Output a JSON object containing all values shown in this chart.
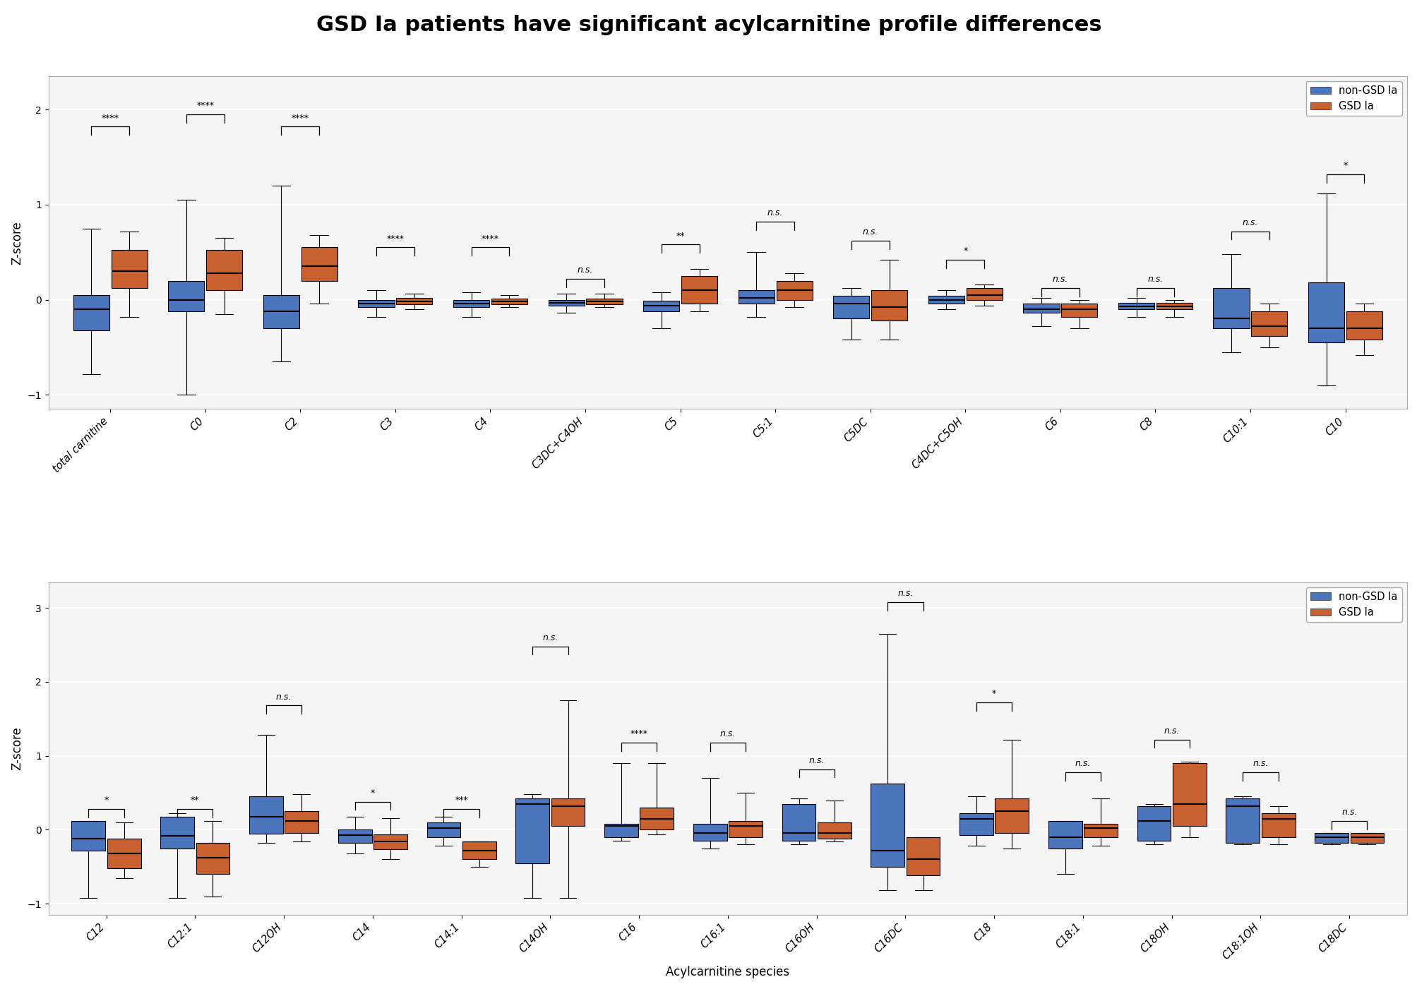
{
  "title": "GSD Ia patients have significant acylcarnitine profile differences",
  "title_fontsize": 22,
  "ylabel": "Z-score",
  "xlabel": "Acylcarnitine species",
  "blue_color": "#4B76BE",
  "orange_color": "#C86030",
  "background_color": "#F5F5F5",
  "panel1_categories": [
    "total carnitine",
    "C0",
    "C2",
    "C3",
    "C4",
    "C3DC+C4OH",
    "C5",
    "C5:1",
    "C5DC",
    "C4DC+C5OH",
    "C6",
    "C8",
    "C10:1",
    "C10"
  ],
  "panel2_categories": [
    "C12",
    "C12:1",
    "C12OH",
    "C14",
    "C14:1",
    "C14OH",
    "C16",
    "C16:1",
    "C16OH",
    "C16DC",
    "C18",
    "C18:1",
    "C18OH",
    "C18:1OH",
    "C18DC"
  ],
  "panel1_significance": [
    "****",
    "****",
    "****",
    "****",
    "****",
    "n.s.",
    "**",
    "n.s.",
    "n.s.",
    "*",
    "n.s.",
    "n.s.",
    "n.s.",
    "*"
  ],
  "panel2_significance": [
    "*",
    "**",
    "n.s.",
    "*",
    "***",
    "n.s.",
    "****",
    "n.s.",
    "n.s.",
    "n.s.",
    "*",
    "n.s.",
    "n.s.",
    "n.s.",
    "n.s."
  ],
  "panel1_blue_boxes": [
    {
      "q1": -0.32,
      "med": -0.1,
      "q3": 0.05,
      "whislo": -0.78,
      "whishi": 0.75
    },
    {
      "q1": -0.12,
      "med": 0.0,
      "q3": 0.2,
      "whislo": -1.0,
      "whishi": 1.05
    },
    {
      "q1": -0.3,
      "med": -0.12,
      "q3": 0.05,
      "whislo": -0.65,
      "whishi": 1.2
    },
    {
      "q1": -0.08,
      "med": -0.04,
      "q3": 0.0,
      "whislo": -0.18,
      "whishi": 0.1
    },
    {
      "q1": -0.08,
      "med": -0.04,
      "q3": 0.0,
      "whislo": -0.18,
      "whishi": 0.08
    },
    {
      "q1": -0.06,
      "med": -0.03,
      "q3": 0.0,
      "whislo": -0.14,
      "whishi": 0.06
    },
    {
      "q1": -0.12,
      "med": -0.06,
      "q3": -0.01,
      "whislo": -0.3,
      "whishi": 0.08
    },
    {
      "q1": -0.04,
      "med": 0.02,
      "q3": 0.1,
      "whislo": -0.18,
      "whishi": 0.5
    },
    {
      "q1": -0.2,
      "med": -0.04,
      "q3": 0.04,
      "whislo": -0.42,
      "whishi": 0.12
    },
    {
      "q1": -0.04,
      "med": 0.0,
      "q3": 0.04,
      "whislo": -0.1,
      "whishi": 0.1
    },
    {
      "q1": -0.14,
      "med": -0.1,
      "q3": -0.04,
      "whislo": -0.28,
      "whishi": 0.02
    },
    {
      "q1": -0.1,
      "med": -0.07,
      "q3": -0.03,
      "whislo": -0.18,
      "whishi": 0.02
    },
    {
      "q1": -0.3,
      "med": -0.2,
      "q3": 0.12,
      "whislo": -0.55,
      "whishi": 0.48
    },
    {
      "q1": -0.45,
      "med": -0.3,
      "q3": 0.18,
      "whislo": -0.9,
      "whishi": 1.12
    }
  ],
  "panel1_orange_boxes": [
    {
      "q1": 0.12,
      "med": 0.3,
      "q3": 0.52,
      "whislo": -0.18,
      "whishi": 0.72
    },
    {
      "q1": 0.1,
      "med": 0.28,
      "q3": 0.52,
      "whislo": -0.15,
      "whishi": 0.65
    },
    {
      "q1": 0.2,
      "med": 0.35,
      "q3": 0.55,
      "whislo": -0.04,
      "whishi": 0.68
    },
    {
      "q1": -0.05,
      "med": -0.02,
      "q3": 0.02,
      "whislo": -0.1,
      "whishi": 0.06
    },
    {
      "q1": -0.05,
      "med": -0.02,
      "q3": 0.01,
      "whislo": -0.08,
      "whishi": 0.05
    },
    {
      "q1": -0.05,
      "med": -0.02,
      "q3": 0.01,
      "whislo": -0.08,
      "whishi": 0.06
    },
    {
      "q1": -0.04,
      "med": 0.1,
      "q3": 0.25,
      "whislo": -0.12,
      "whishi": 0.32
    },
    {
      "q1": 0.0,
      "med": 0.1,
      "q3": 0.2,
      "whislo": -0.08,
      "whishi": 0.28
    },
    {
      "q1": -0.22,
      "med": -0.08,
      "q3": 0.1,
      "whislo": -0.42,
      "whishi": 0.42
    },
    {
      "q1": 0.0,
      "med": 0.05,
      "q3": 0.12,
      "whislo": -0.06,
      "whishi": 0.16
    },
    {
      "q1": -0.18,
      "med": -0.1,
      "q3": -0.04,
      "whislo": -0.3,
      "whishi": 0.0
    },
    {
      "q1": -0.1,
      "med": -0.07,
      "q3": -0.03,
      "whislo": -0.18,
      "whishi": 0.0
    },
    {
      "q1": -0.38,
      "med": -0.28,
      "q3": -0.12,
      "whislo": -0.5,
      "whishi": -0.04
    },
    {
      "q1": -0.42,
      "med": -0.3,
      "q3": -0.12,
      "whislo": -0.58,
      "whishi": -0.04
    }
  ],
  "panel2_blue_boxes": [
    {
      "q1": -0.28,
      "med": -0.12,
      "q3": 0.12,
      "whislo": -0.92,
      "whishi": 0.12
    },
    {
      "q1": -0.25,
      "med": -0.08,
      "q3": 0.18,
      "whislo": -0.92,
      "whishi": 0.22
    },
    {
      "q1": -0.05,
      "med": 0.18,
      "q3": 0.45,
      "whislo": -0.18,
      "whishi": 1.28
    },
    {
      "q1": -0.18,
      "med": -0.07,
      "q3": 0.0,
      "whislo": -0.32,
      "whishi": 0.18
    },
    {
      "q1": -0.1,
      "med": 0.02,
      "q3": 0.1,
      "whislo": -0.22,
      "whishi": 0.18
    },
    {
      "q1": -0.45,
      "med": 0.35,
      "q3": 0.42,
      "whislo": -0.92,
      "whishi": 0.48
    },
    {
      "q1": -0.1,
      "med": 0.05,
      "q3": 0.08,
      "whislo": -0.15,
      "whishi": 0.9
    },
    {
      "q1": -0.15,
      "med": -0.04,
      "q3": 0.08,
      "whislo": -0.25,
      "whishi": 0.7
    },
    {
      "q1": -0.15,
      "med": -0.04,
      "q3": 0.35,
      "whislo": -0.2,
      "whishi": 0.42
    },
    {
      "q1": -0.5,
      "med": -0.28,
      "q3": 0.62,
      "whislo": -0.82,
      "whishi": 2.65
    },
    {
      "q1": -0.07,
      "med": 0.15,
      "q3": 0.22,
      "whislo": -0.22,
      "whishi": 0.45
    },
    {
      "q1": -0.25,
      "med": -0.1,
      "q3": 0.12,
      "whislo": -0.6,
      "whishi": 0.12
    },
    {
      "q1": -0.15,
      "med": 0.12,
      "q3": 0.32,
      "whislo": -0.2,
      "whishi": 0.35
    },
    {
      "q1": -0.18,
      "med": 0.32,
      "q3": 0.42,
      "whislo": -0.2,
      "whishi": 0.45
    },
    {
      "q1": -0.18,
      "med": -0.1,
      "q3": -0.04,
      "whislo": -0.2,
      "whishi": -0.04
    }
  ],
  "panel2_orange_boxes": [
    {
      "q1": -0.52,
      "med": -0.32,
      "q3": -0.12,
      "whislo": -0.65,
      "whishi": 0.1
    },
    {
      "q1": -0.6,
      "med": -0.38,
      "q3": -0.18,
      "whislo": -0.9,
      "whishi": 0.12
    },
    {
      "q1": -0.04,
      "med": 0.12,
      "q3": 0.25,
      "whislo": -0.16,
      "whishi": 0.48
    },
    {
      "q1": -0.26,
      "med": -0.16,
      "q3": -0.06,
      "whislo": -0.4,
      "whishi": 0.16
    },
    {
      "q1": -0.4,
      "med": -0.28,
      "q3": -0.16,
      "whislo": -0.5,
      "whishi": -0.16
    },
    {
      "q1": 0.05,
      "med": 0.32,
      "q3": 0.42,
      "whislo": -0.92,
      "whishi": 1.75
    },
    {
      "q1": 0.0,
      "med": 0.15,
      "q3": 0.3,
      "whislo": -0.06,
      "whishi": 0.9
    },
    {
      "q1": -0.1,
      "med": 0.05,
      "q3": 0.12,
      "whislo": -0.2,
      "whishi": 0.5
    },
    {
      "q1": -0.12,
      "med": -0.04,
      "q3": 0.1,
      "whislo": -0.16,
      "whishi": 0.4
    },
    {
      "q1": -0.62,
      "med": -0.4,
      "q3": -0.1,
      "whislo": -0.82,
      "whishi": -0.1
    },
    {
      "q1": -0.04,
      "med": 0.25,
      "q3": 0.42,
      "whislo": -0.25,
      "whishi": 1.22
    },
    {
      "q1": -0.1,
      "med": 0.02,
      "q3": 0.08,
      "whislo": -0.22,
      "whishi": 0.42
    },
    {
      "q1": 0.05,
      "med": 0.35,
      "q3": 0.9,
      "whislo": -0.1,
      "whishi": 0.92
    },
    {
      "q1": -0.1,
      "med": 0.15,
      "q3": 0.22,
      "whislo": -0.2,
      "whishi": 0.32
    },
    {
      "q1": -0.18,
      "med": -0.1,
      "q3": -0.04,
      "whislo": -0.2,
      "whishi": -0.04
    }
  ],
  "panel1_sig_heights": [
    1.82,
    1.95,
    1.82,
    0.55,
    0.55,
    0.22,
    0.58,
    0.82,
    0.62,
    0.42,
    0.12,
    0.12,
    0.72,
    1.32
  ],
  "panel2_sig_heights": [
    0.28,
    0.28,
    1.68,
    0.38,
    0.28,
    2.48,
    1.18,
    1.18,
    0.82,
    3.08,
    1.72,
    0.78,
    1.22,
    0.78,
    0.12
  ]
}
